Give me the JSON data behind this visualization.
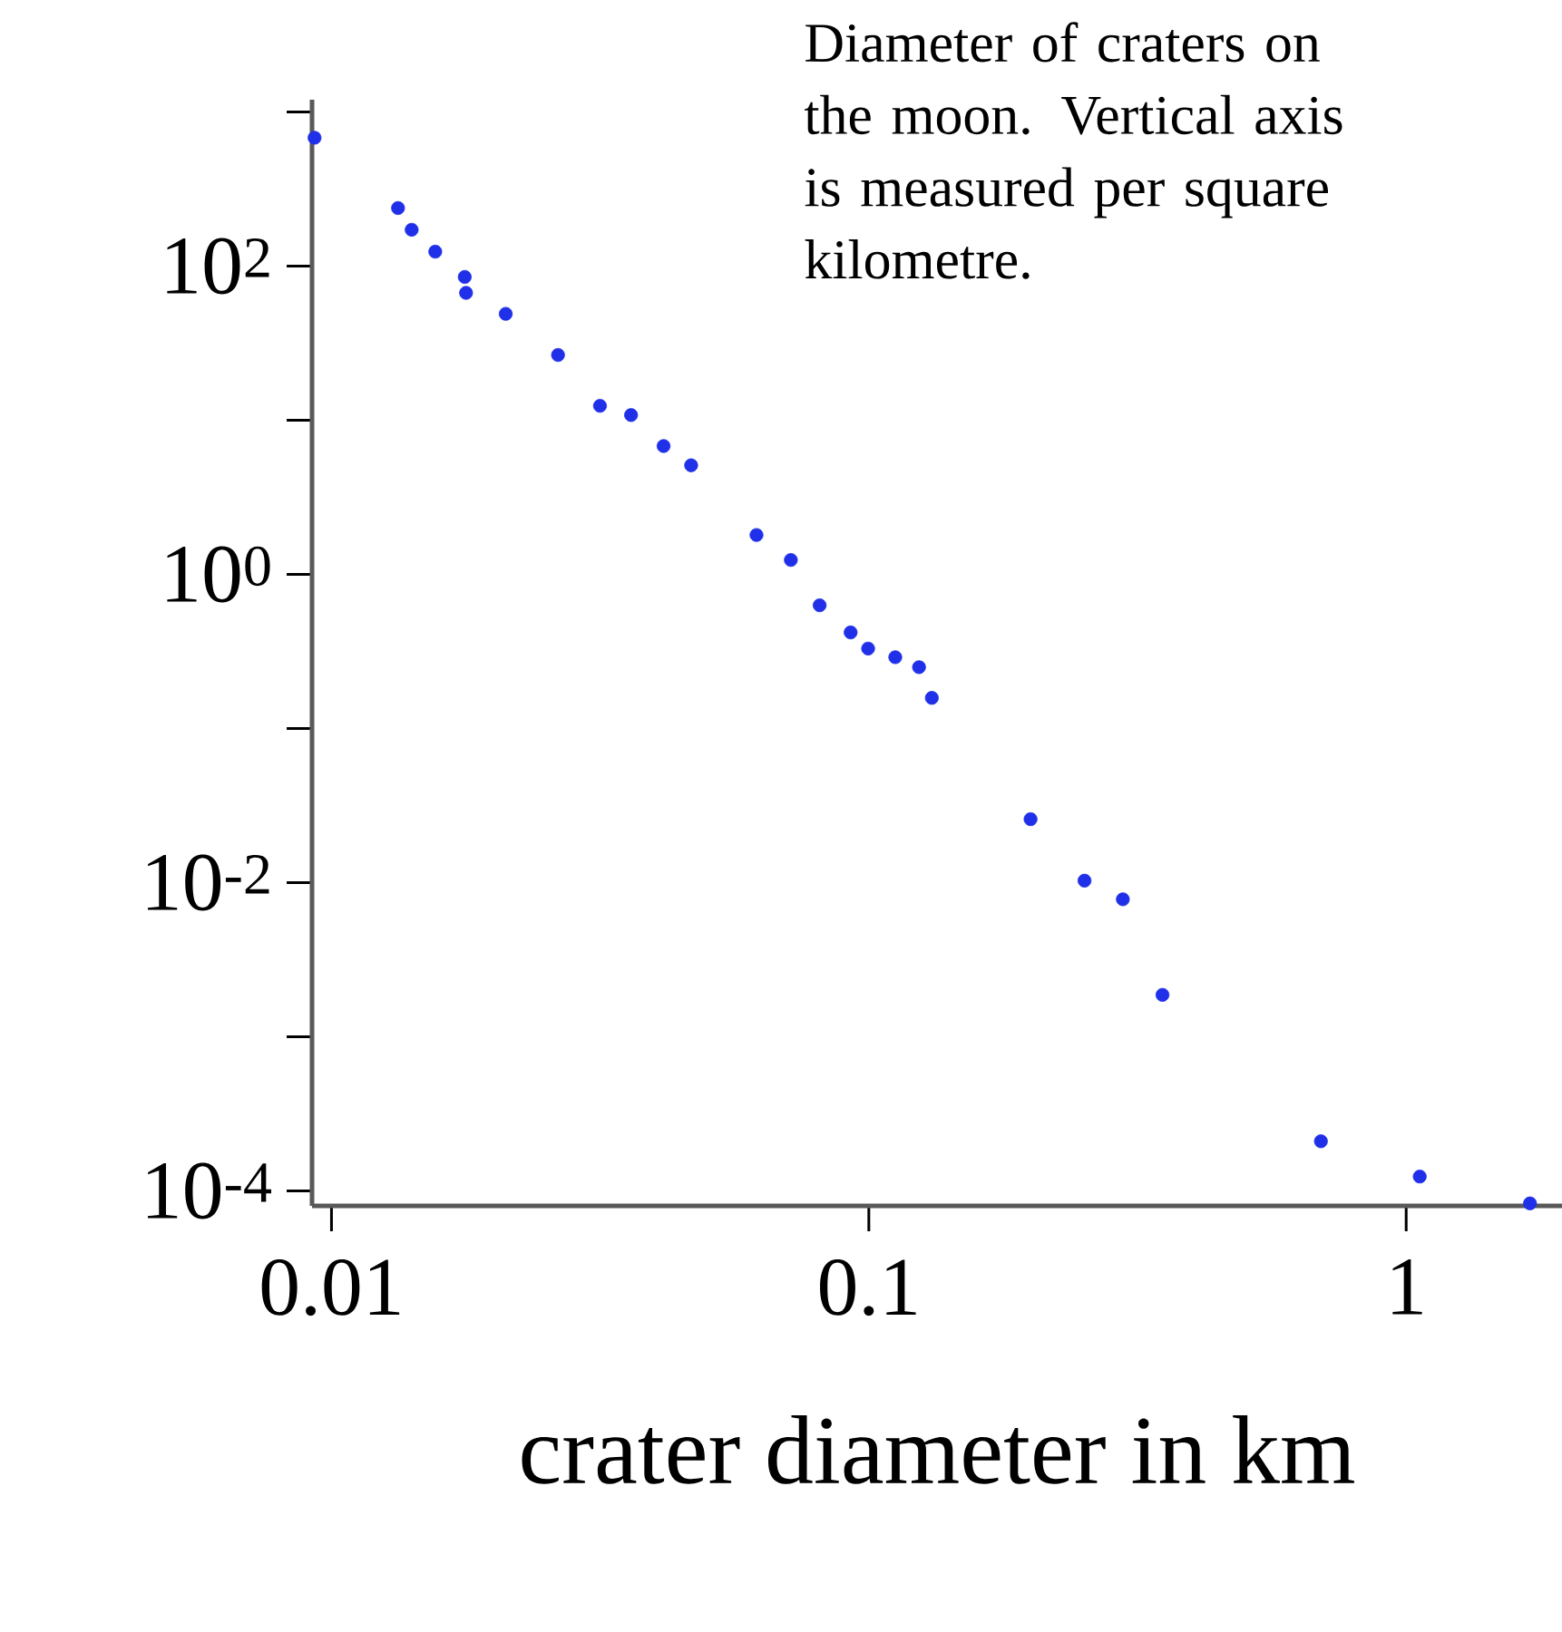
{
  "chart_data": {
    "type": "scatter",
    "annotations": [
      "Diameter of craters on the moon. Vertical axis is measured per square kilometre."
    ],
    "xlabel": "crater diameter in km",
    "x": [
      0.0093,
      0.0133,
      0.0141,
      0.0156,
      0.0177,
      0.0178,
      0.0211,
      0.0264,
      0.0316,
      0.0361,
      0.0415,
      0.0467,
      0.0618,
      0.0716,
      0.081,
      0.0925,
      0.0997,
      0.112,
      0.124,
      0.131,
      0.2,
      0.252,
      0.297,
      0.352,
      0.694,
      1.06,
      1.7
    ],
    "values": [
      680,
      238,
      172,
      124,
      85,
      67,
      49,
      26.5,
      12.4,
      10.8,
      6.8,
      5.1,
      1.8,
      1.24,
      0.63,
      0.42,
      0.33,
      0.29,
      0.25,
      0.158,
      0.0258,
      0.0103,
      0.0078,
      0.00187,
      0.00021,
      0.000124,
      8.3e-05
    ],
    "color": "#1f30e8",
    "marker": "circle",
    "log": "xy",
    "xlim": [
      0.0092,
      1.95
    ],
    "ylim": [
      8e-05,
      1200
    ],
    "xticks": [
      0.01,
      0.1,
      1
    ],
    "yticks": [
      {
        "value": 1000,
        "label": null
      },
      {
        "value": 100,
        "label": "10$^{2}$"
      },
      {
        "value": 10,
        "label": null
      },
      {
        "value": 1,
        "label": "10$^{0}$"
      },
      {
        "value": 0.1,
        "label": null
      },
      {
        "value": 0.01,
        "label": "10$^{-2}$"
      },
      {
        "value": 0.001,
        "label": null
      },
      {
        "value": 0.0001,
        "label": "10$^{-4}$"
      }
    ]
  }
}
